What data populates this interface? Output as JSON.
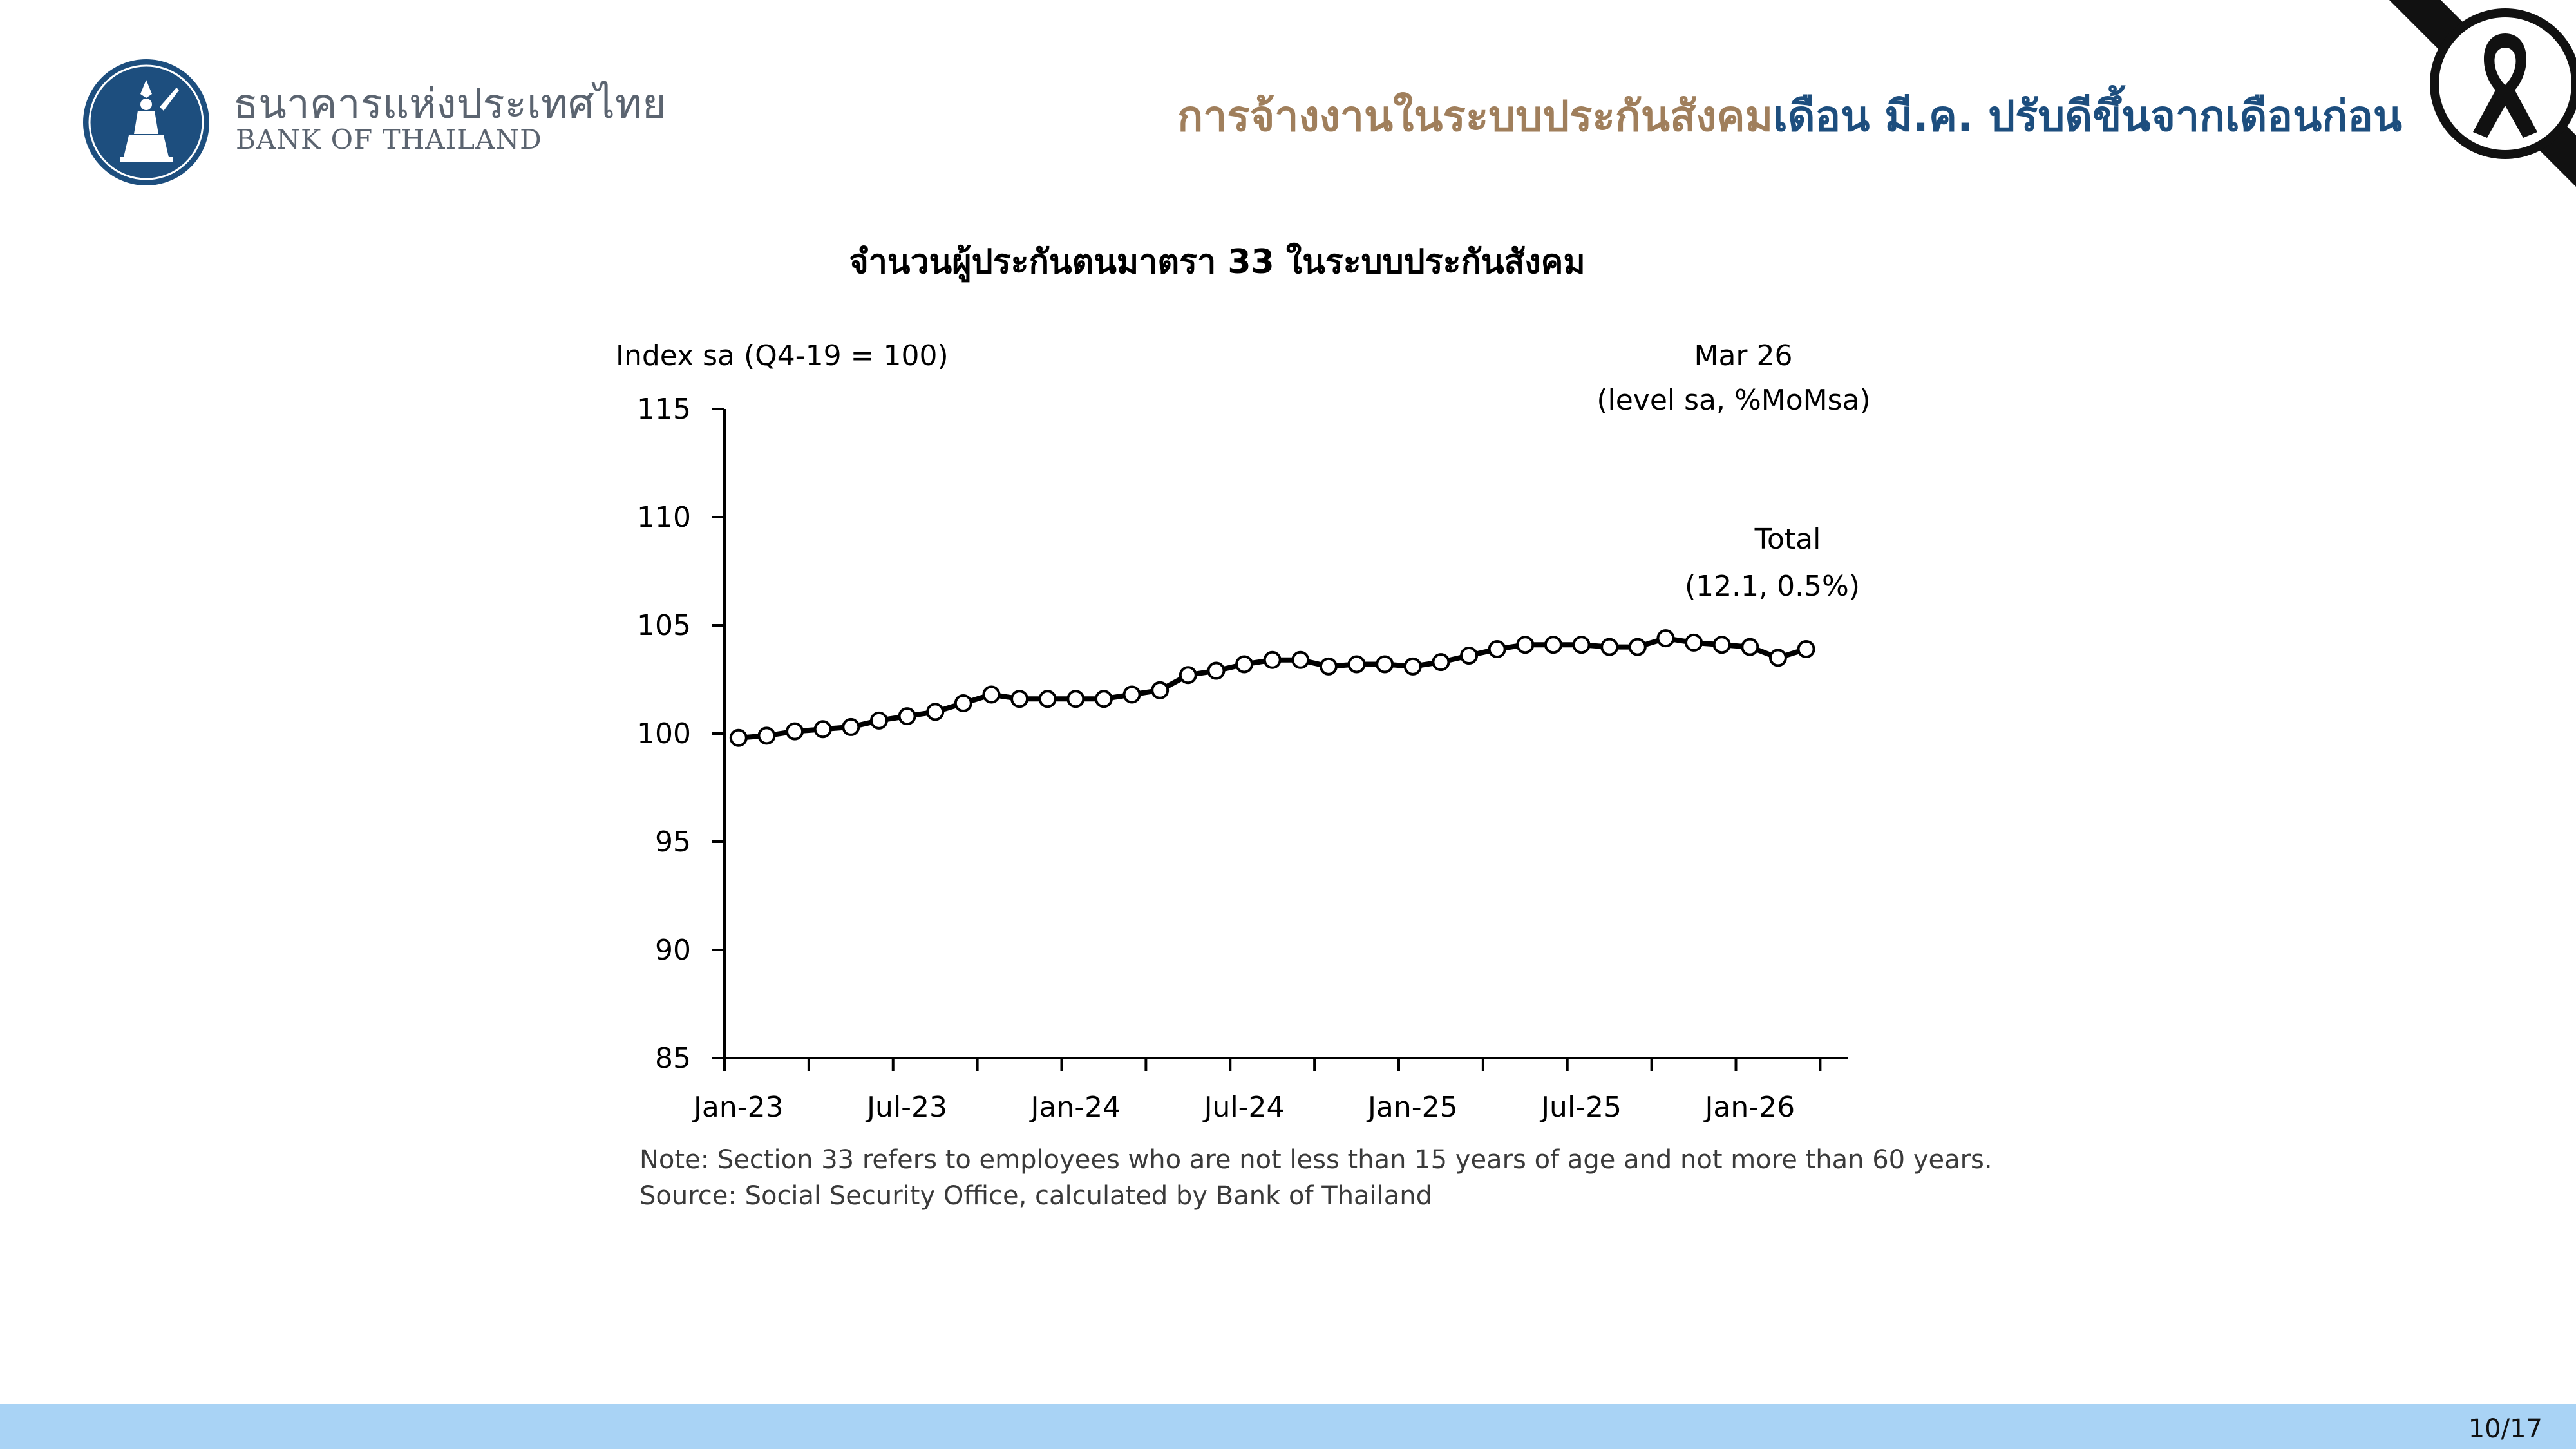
{
  "header": {
    "bank_name_th": "ธนาคารแห่งประเทศไทย",
    "bank_name_en": "BANK OF THAILAND",
    "headline_part1": "การจ้างงานในระบบประกันสังคม",
    "headline_part2": "เดือน มี.ค. ปรับดีขึ้นจากเดือนก่อน",
    "colors": {
      "headline_part1": "#a07f5c",
      "headline_part2": "#1d4e7e",
      "seal": "#1d4e7e"
    },
    "icons": {
      "logo": "bank-of-thailand-seal-icon",
      "ribbon": "mourning-ribbon-icon"
    }
  },
  "chart_title": "จำนวนผู้ประกันตนมาตรา 33 ในระบบประกันสังคม",
  "chart_data": {
    "type": "line",
    "title": "จำนวนผู้ประกันตนมาตรา 33 ในระบบประกันสังคม",
    "ylabel": "Index sa (Q4-19 = 100)",
    "xlabel": "",
    "ylim": [
      85,
      115
    ],
    "yticks": [
      "115",
      "110",
      "105",
      "100",
      "95",
      "90",
      "85"
    ],
    "xtick_labels": [
      "Jan-23",
      "Jul-23",
      "Jan-24",
      "Jul-24",
      "Jan-25",
      "Jul-25",
      "Jan-26"
    ],
    "x_start": "Jan-23",
    "x_end": "Mar-26",
    "grid": false,
    "marker": "circle-hollow",
    "line_color": "#000000",
    "series": [
      {
        "name": "Total",
        "values": [
          99.8,
          99.9,
          100.1,
          100.2,
          100.3,
          100.6,
          100.8,
          101.0,
          101.4,
          101.8,
          101.6,
          101.6,
          101.6,
          101.6,
          101.8,
          102.0,
          102.7,
          102.9,
          103.2,
          103.4,
          103.4,
          103.1,
          103.2,
          103.2,
          103.1,
          103.3,
          103.6,
          103.9,
          104.1,
          104.1,
          104.1,
          104.0,
          104.0,
          104.4,
          104.2,
          104.1,
          104.0,
          103.5,
          103.9
        ]
      }
    ],
    "annotations": {
      "corner_label_1": "Mar 26",
      "corner_label_2": "(level sa, %MoMsa)",
      "series_label": "Total",
      "series_value": "(12.1, 0.5%)"
    }
  },
  "notes": {
    "note": "Note: Section 33 refers to employees who are not less than 15 years of age and not more than 60 years.",
    "source": "Source: Social Security Office, calculated by Bank of Thailand"
  },
  "footer": {
    "page": "10/17",
    "bar_color": "#a9d3f5"
  }
}
